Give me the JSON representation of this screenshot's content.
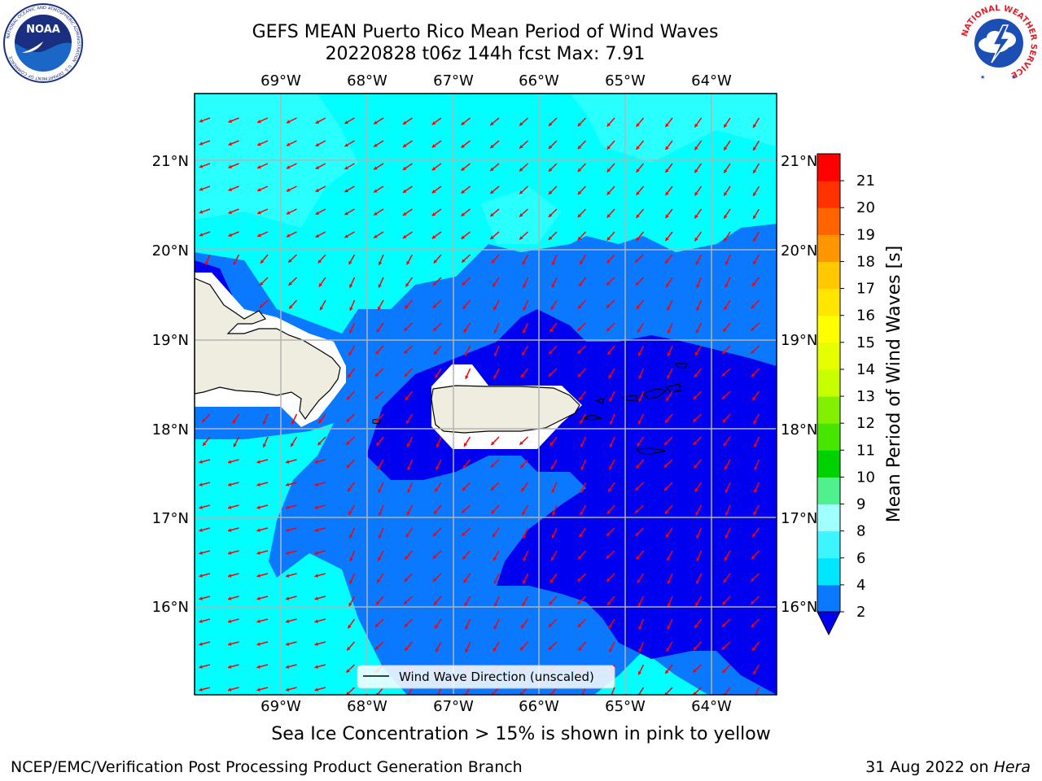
{
  "header": {
    "title_line1": "GEFS MEAN Puerto Rico Mean Period of Wind Waves",
    "title_line2": "20220828 t06z 144h fcst   Max: 7.91"
  },
  "logos": {
    "left": "noaa-logo",
    "left_text": "NOAA",
    "left_ring_text": "NATIONAL OCEANIC AND ATMOSPHERIC ADMINISTRATION · U.S. DEPARTMENT OF COMMERCE",
    "right": "national-weather-service-logo",
    "right_ring_text": "NATIONAL WEATHER SERVICE"
  },
  "map": {
    "lon_labels": [
      "69°W",
      "68°W",
      "67°W",
      "66°W",
      "65°W",
      "64°W"
    ],
    "lat_labels": [
      "21°N",
      "20°N",
      "19°N",
      "18°N",
      "17°N",
      "16°N"
    ],
    "legend_label": "Wind Wave Direction (unscaled)",
    "arrow_color": "#ff0000",
    "land_color": "#eeede0"
  },
  "colorbar": {
    "label": "Mean Period of Wind Waves [s]",
    "ticks": [
      "2",
      "4",
      "6",
      "8",
      "9",
      "10",
      "11",
      "12",
      "13",
      "14",
      "15",
      "16",
      "17",
      "18",
      "19",
      "20",
      "21"
    ],
    "colors": [
      "#0a78ff",
      "#00e6ff",
      "#3cf5ff",
      "#a0ffff",
      "#50f08c",
      "#00d200",
      "#46e600",
      "#82f000",
      "#c8ff00",
      "#e6ff00",
      "#ffff00",
      "#ffe600",
      "#ffc800",
      "#ff9600",
      "#ff6400",
      "#ff3200",
      "#ff0000"
    ],
    "under_color": "#0000f0"
  },
  "caption": "Sea Ice Concentration > 15% is shown in pink to yellow",
  "footer": {
    "left": "NCEP/EMC/Verification Post Processing Product Generation Branch",
    "right_date": "31 Aug 2022 on",
    "right_machine": "Hera"
  }
}
